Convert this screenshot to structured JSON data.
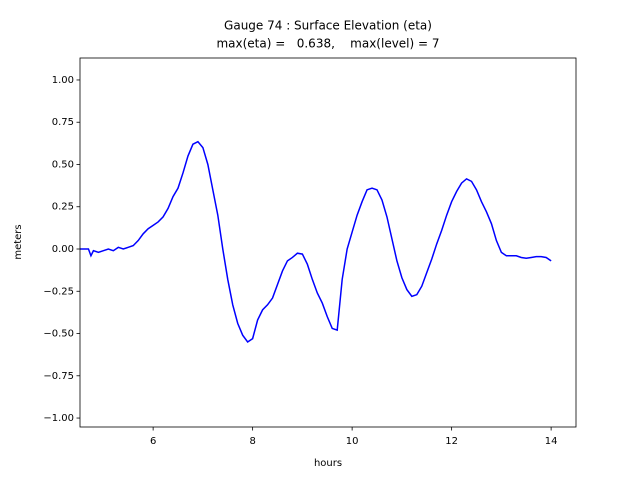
{
  "chart_data": {
    "type": "line",
    "title": "Gauge 74 : Surface Elevation (eta)",
    "subtitle": "max(eta) =   0.638,    max(level) = 7",
    "x_label": "hours",
    "y_label": "meters",
    "xlim": [
      4.53,
      14.5
    ],
    "ylim": [
      -1.053,
      1.13
    ],
    "xticks": [
      6,
      8,
      10,
      12,
      14
    ],
    "yticks": [
      {
        "value": -1,
        "label": "−1.00"
      },
      {
        "value": -0.75,
        "label": "−0.75"
      },
      {
        "value": -0.5,
        "label": "−0.50"
      },
      {
        "value": -0.25,
        "label": "−0.25"
      },
      {
        "value": 0,
        "label": "0.00"
      },
      {
        "value": 0.25,
        "label": "0.25"
      },
      {
        "value": 0.5,
        "label": "0.50"
      },
      {
        "value": 0.75,
        "label": "0.75"
      },
      {
        "value": 1,
        "label": "1.00"
      }
    ],
    "x": [
      4.53,
      4.7,
      4.75,
      4.8,
      4.9,
      5.0,
      5.1,
      5.2,
      5.3,
      5.4,
      5.5,
      5.6,
      5.7,
      5.8,
      5.9,
      6.0,
      6.1,
      6.2,
      6.3,
      6.4,
      6.5,
      6.6,
      6.7,
      6.8,
      6.9,
      7.0,
      7.1,
      7.2,
      7.3,
      7.4,
      7.5,
      7.6,
      7.7,
      7.8,
      7.9,
      8.0,
      8.1,
      8.2,
      8.3,
      8.4,
      8.5,
      8.6,
      8.7,
      8.8,
      8.9,
      9.0,
      9.1,
      9.2,
      9.3,
      9.4,
      9.5,
      9.6,
      9.7,
      9.8,
      9.9,
      10.0,
      10.1,
      10.2,
      10.3,
      10.4,
      10.5,
      10.6,
      10.7,
      10.8,
      10.9,
      11.0,
      11.1,
      11.2,
      11.3,
      11.4,
      11.5,
      11.6,
      11.7,
      11.8,
      11.9,
      12.0,
      12.1,
      12.2,
      12.3,
      12.4,
      12.5,
      12.6,
      12.7,
      12.8,
      12.9,
      13.0,
      13.1,
      13.2,
      13.3,
      13.4,
      13.5,
      13.6,
      13.7,
      13.8,
      13.9,
      14.0
    ],
    "series": [
      {
        "name": "eta",
        "color": "#0000ff",
        "values": [
          0.0,
          0.0,
          -0.04,
          -0.01,
          -0.02,
          -0.01,
          0.0,
          -0.01,
          0.01,
          0.0,
          0.01,
          0.02,
          0.05,
          0.09,
          0.12,
          0.14,
          0.16,
          0.19,
          0.24,
          0.31,
          0.36,
          0.45,
          0.55,
          0.62,
          0.635,
          0.6,
          0.5,
          0.35,
          0.2,
          0.0,
          -0.18,
          -0.33,
          -0.44,
          -0.51,
          -0.55,
          -0.53,
          -0.42,
          -0.36,
          -0.33,
          -0.29,
          -0.21,
          -0.13,
          -0.07,
          -0.05,
          -0.025,
          -0.03,
          -0.09,
          -0.18,
          -0.26,
          -0.32,
          -0.4,
          -0.47,
          -0.48,
          -0.18,
          0.0,
          0.1,
          0.2,
          0.28,
          0.35,
          0.36,
          0.35,
          0.29,
          0.19,
          0.06,
          -0.07,
          -0.17,
          -0.24,
          -0.28,
          -0.27,
          -0.22,
          -0.14,
          -0.06,
          0.03,
          0.11,
          0.2,
          0.28,
          0.34,
          0.39,
          0.415,
          0.4,
          0.35,
          0.28,
          0.22,
          0.15,
          0.05,
          -0.02,
          -0.04,
          -0.04,
          -0.04,
          -0.05,
          -0.055,
          -0.05,
          -0.045,
          -0.045,
          -0.05,
          -0.07
        ]
      }
    ]
  }
}
